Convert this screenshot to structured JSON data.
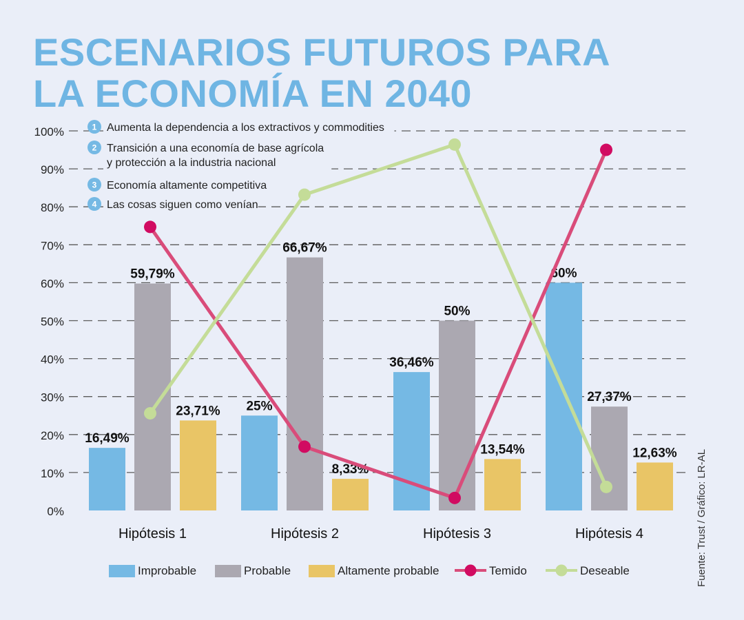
{
  "title": {
    "line1": "ESCENARIOS FUTUROS PARA",
    "line2": "LA ECONOMÍA EN 2040"
  },
  "notes": [
    {
      "number": "1",
      "lines": [
        "Aumenta la dependencia a los extractivos y commodities"
      ]
    },
    {
      "number": "2",
      "lines": [
        "Transición a una economía de base agrícola",
        "y protección a la industria nacional"
      ]
    },
    {
      "number": "3",
      "lines": [
        "Economía altamente competitiva"
      ]
    },
    {
      "number": "4",
      "lines": [
        "Las cosas siguen como venían"
      ]
    }
  ],
  "source": "Fuente: Trust / Gráfico: LR-AL",
  "colors": {
    "improbable": "#75b9e4",
    "probable": "#aba8b1",
    "altamente": "#e9c566",
    "temido": "#d94c7a",
    "deseable": "#c4dc98",
    "temido_marker": "#d10b61",
    "deseable_marker": "#c4dc98",
    "title": "#6fb5e3",
    "note_circle": "#75b9e4"
  },
  "chart_data": {
    "type": "bar",
    "categories": [
      "Hipótesis 1",
      "Hipótesis 2",
      "Hipótesis 3",
      "Hipótesis 4"
    ],
    "ylim": [
      0,
      100
    ],
    "yticks": [
      "0%",
      "10%",
      "20%",
      "30%",
      "40%",
      "50%",
      "60%",
      "70%",
      "80%",
      "90%",
      "100%"
    ],
    "grid": "dashed horizontal",
    "legend_position": "bottom",
    "bar_series": [
      {
        "name": "Improbable",
        "color_key": "improbable",
        "values": [
          16.49,
          25,
          36.46,
          60
        ],
        "labels": [
          "16,49%",
          "25%",
          "36,46%",
          "60%"
        ]
      },
      {
        "name": "Probable",
        "color_key": "probable",
        "values": [
          59.79,
          66.67,
          50,
          27.37
        ],
        "labels": [
          "59,79%",
          "66,67%",
          "50%",
          "27,37%"
        ]
      },
      {
        "name": "Altamente probable",
        "color_key": "altamente",
        "values": [
          23.71,
          8.33,
          13.54,
          12.63
        ],
        "labels": [
          "23,71%",
          "8,33%",
          "13,54%",
          "12,63%"
        ]
      }
    ],
    "line_series": [
      {
        "name": "Temido",
        "color_key": "temido",
        "marker_key": "temido_marker",
        "values": [
          74.7,
          16.8,
          3.3,
          95
        ]
      },
      {
        "name": "Deseable",
        "color_key": "deseable",
        "marker_key": "deseable_marker",
        "values": [
          25.6,
          83.2,
          96.4,
          6.2
        ]
      }
    ]
  }
}
